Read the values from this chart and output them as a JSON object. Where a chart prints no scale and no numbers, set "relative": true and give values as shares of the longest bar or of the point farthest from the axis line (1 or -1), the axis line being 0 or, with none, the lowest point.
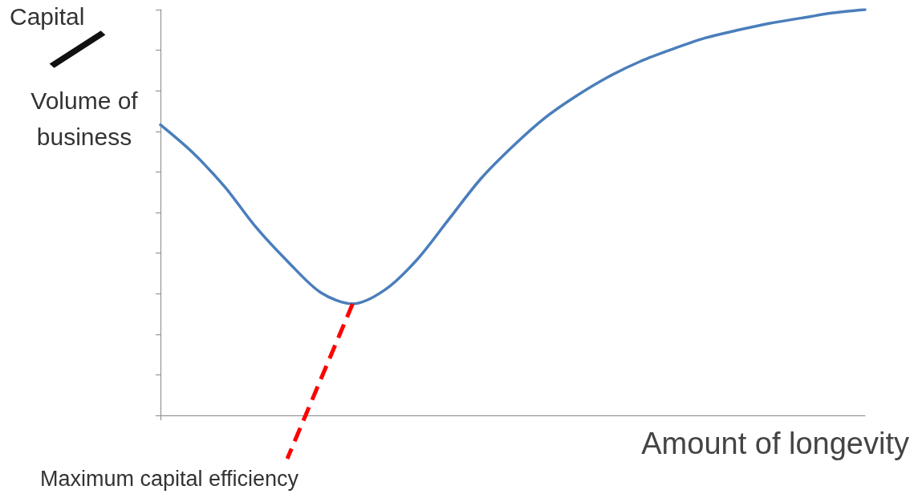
{
  "chart_data": {
    "type": "line",
    "relative": true,
    "color": "#4a7ebb",
    "marker": "none",
    "line_style": "solid",
    "categories": [
      null,
      null,
      null,
      null,
      null,
      null,
      null,
      null,
      null,
      null,
      null,
      null,
      null,
      null,
      null,
      null,
      null,
      null,
      null,
      null,
      null,
      null,
      null
    ],
    "values": [
      0.716,
      0.648,
      0.564,
      0.462,
      0.377,
      0.303,
      0.275,
      0.309,
      0.383,
      0.483,
      0.583,
      0.663,
      0.733,
      0.788,
      0.835,
      0.873,
      0.903,
      0.93,
      0.949,
      0.966,
      0.979,
      0.992,
      1
    ],
    "xlabel": "Amount of longevity",
    "ylabel": "Capital / Volume of business",
    "annotations": [
      "Maximum capital efficiency"
    ]
  }
}
